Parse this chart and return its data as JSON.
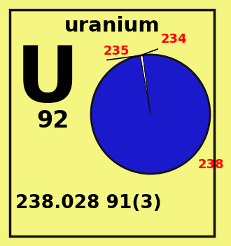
{
  "bg_color": "#f5f582",
  "border_color": "#111111",
  "title": "uranium",
  "symbol": "U",
  "atomic_number": "92",
  "atomic_weight": "238.028 91(3)",
  "pie_slices": [
    {
      "label": "234",
      "value": 5e-05,
      "color": "#00e5e5"
    },
    {
      "label": "235",
      "value": 0.0072,
      "color": "#ffffff"
    },
    {
      "label": "238",
      "value": 0.9928,
      "color": "#1a1acc"
    }
  ],
  "label_color": "#ff0000",
  "title_fontsize": 21,
  "symbol_fontsize": 80,
  "atomic_number_fontsize": 24,
  "weight_fontsize": 19
}
